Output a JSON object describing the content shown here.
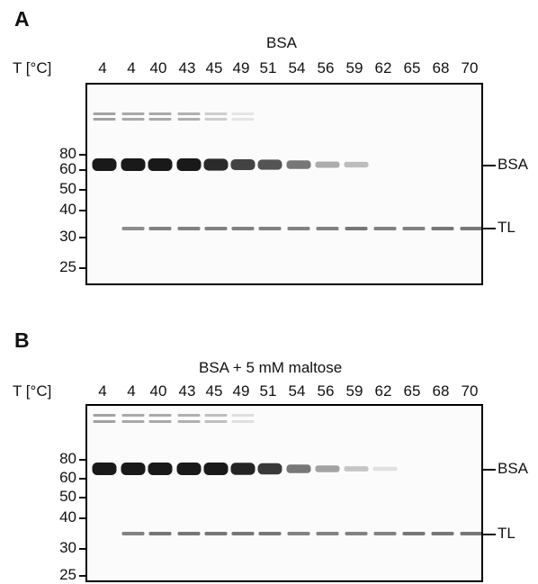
{
  "panels": [
    {
      "letter": "A",
      "title": "BSA",
      "t_label": "T  [°C]",
      "temperatures": [
        "4",
        "4",
        "40",
        "43",
        "45",
        "49",
        "51",
        "54",
        "56",
        "59",
        "62",
        "65",
        "68",
        "70"
      ],
      "markers": [
        "80",
        "60",
        "50",
        "40",
        "30",
        "25"
      ],
      "band_labels": [
        "BSA",
        "TL"
      ],
      "bsa_intensity": [
        1.0,
        1.0,
        1.0,
        1.0,
        0.92,
        0.8,
        0.72,
        0.55,
        0.3,
        0.22,
        0.0,
        0.0,
        0.0,
        0.0
      ],
      "tl_intensity": [
        0.0,
        0.45,
        0.5,
        0.5,
        0.5,
        0.5,
        0.5,
        0.5,
        0.5,
        0.55,
        0.5,
        0.5,
        0.55,
        0.55
      ],
      "high_mw_intensity": [
        0.5,
        0.45,
        0.45,
        0.4,
        0.2,
        0.05,
        0.0,
        0.0,
        0.0,
        0.0,
        0.0,
        0.0,
        0.0,
        0.0
      ]
    },
    {
      "letter": "B",
      "title": "BSA  +  5  mM  maltose",
      "t_label": "T  [°C]",
      "temperatures": [
        "4",
        "4",
        "40",
        "43",
        "45",
        "49",
        "51",
        "54",
        "56",
        "59",
        "62",
        "65",
        "68",
        "70"
      ],
      "markers": [
        "80",
        "60",
        "50",
        "40",
        "30",
        "25"
      ],
      "band_labels": [
        "BSA",
        "TL"
      ],
      "bsa_intensity": [
        1.0,
        1.0,
        1.0,
        1.0,
        1.0,
        0.95,
        0.85,
        0.55,
        0.35,
        0.18,
        0.05,
        0.0,
        0.0,
        0.0
      ],
      "tl_intensity": [
        0.0,
        0.5,
        0.55,
        0.55,
        0.55,
        0.55,
        0.55,
        0.5,
        0.5,
        0.5,
        0.5,
        0.55,
        0.55,
        0.55
      ],
      "high_mw_intensity": [
        0.5,
        0.45,
        0.45,
        0.4,
        0.3,
        0.08,
        0.0,
        0.0,
        0.0,
        0.0,
        0.0,
        0.0,
        0.0,
        0.0
      ]
    }
  ]
}
